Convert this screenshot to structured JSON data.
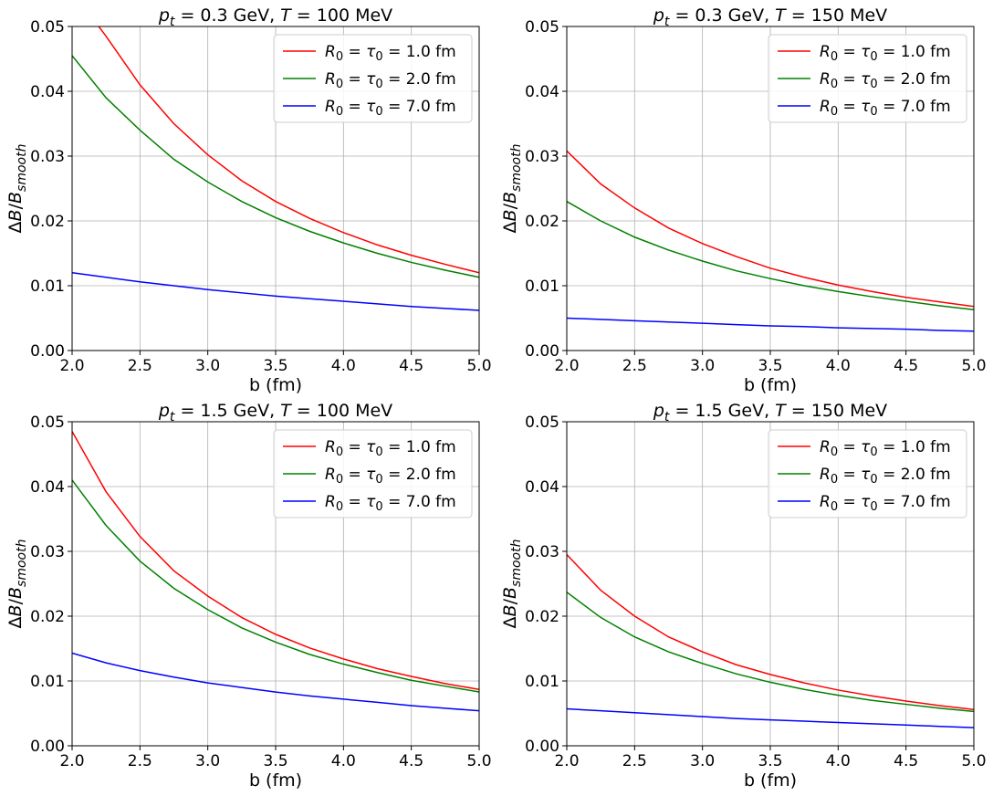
{
  "chart_data": [
    {
      "type": "line",
      "title": "p_t = 0.3 GeV, T = 100 MeV",
      "title_parts": {
        "var1": "p",
        "sub1": "t",
        "mid1": " = 0.3 GeV, ",
        "var2": "T",
        "mid2": " = 100 MeV"
      },
      "xlabel": "b (fm)",
      "ylabel": "ΔB/B_smooth",
      "xlim": [
        2.0,
        5.0
      ],
      "ylim": [
        0.0,
        0.05
      ],
      "xticks": [
        "2.0",
        "2.5",
        "3.0",
        "3.5",
        "4.0",
        "4.5",
        "5.0"
      ],
      "yticks": [
        "0.00",
        "0.01",
        "0.02",
        "0.03",
        "0.04",
        "0.05"
      ],
      "grid": true,
      "legend_position": "top-right",
      "x": [
        2.0,
        2.25,
        2.5,
        2.75,
        3.0,
        3.25,
        3.5,
        3.75,
        4.0,
        4.25,
        4.5,
        4.75,
        5.0
      ],
      "series": [
        {
          "name": "R_0 = τ_0 = 1.0 fm",
          "color": "#ff0000",
          "values": [
            0.0555,
            0.0485,
            0.041,
            0.035,
            0.0302,
            0.0262,
            0.023,
            0.0204,
            0.0182,
            0.0163,
            0.0147,
            0.0133,
            0.012
          ]
        },
        {
          "name": "R_0 = τ_0 = 2.0 fm",
          "color": "#008000",
          "values": [
            0.0455,
            0.039,
            0.034,
            0.0295,
            0.026,
            0.023,
            0.0205,
            0.0184,
            0.0166,
            0.015,
            0.0136,
            0.0124,
            0.0113
          ]
        },
        {
          "name": "R_0 = τ_0 = 7.0 fm",
          "color": "#0000ff",
          "values": [
            0.012,
            0.0113,
            0.0106,
            0.01,
            0.0094,
            0.0089,
            0.0084,
            0.008,
            0.0076,
            0.0072,
            0.0068,
            0.0065,
            0.0062
          ]
        }
      ]
    },
    {
      "type": "line",
      "title": "p_t = 0.3 GeV, T = 150 MeV",
      "title_parts": {
        "var1": "p",
        "sub1": "t",
        "mid1": " = 0.3 GeV, ",
        "var2": "T",
        "mid2": " = 150 MeV"
      },
      "xlabel": "b (fm)",
      "ylabel": "ΔB/B_smooth",
      "xlim": [
        2.0,
        5.0
      ],
      "ylim": [
        0.0,
        0.05
      ],
      "xticks": [
        "2.0",
        "2.5",
        "3.0",
        "3.5",
        "4.0",
        "4.5",
        "5.0"
      ],
      "yticks": [
        "0.00",
        "0.01",
        "0.02",
        "0.03",
        "0.04",
        "0.05"
      ],
      "grid": true,
      "legend_position": "top-right",
      "x": [
        2.0,
        2.25,
        2.5,
        2.75,
        3.0,
        3.25,
        3.5,
        3.75,
        4.0,
        4.25,
        4.5,
        4.75,
        5.0
      ],
      "series": [
        {
          "name": "R_0 = τ_0 = 1.0 fm",
          "color": "#ff0000",
          "values": [
            0.0308,
            0.0257,
            0.022,
            0.0189,
            0.0165,
            0.0145,
            0.0127,
            0.0113,
            0.0101,
            0.0091,
            0.0082,
            0.0075,
            0.0068
          ]
        },
        {
          "name": "R_0 = τ_0 = 2.0 fm",
          "color": "#008000",
          "values": [
            0.023,
            0.02,
            0.0175,
            0.0155,
            0.0138,
            0.0123,
            0.0111,
            0.01,
            0.0091,
            0.0083,
            0.0076,
            0.0069,
            0.0063
          ]
        },
        {
          "name": "R_0 = τ_0 = 7.0 fm",
          "color": "#0000ff",
          "values": [
            0.005,
            0.0048,
            0.0046,
            0.0044,
            0.0042,
            0.004,
            0.0038,
            0.0037,
            0.0035,
            0.0034,
            0.0033,
            0.0031,
            0.003
          ]
        }
      ]
    },
    {
      "type": "line",
      "title": "p_t = 1.5 GeV, T = 100 MeV",
      "title_parts": {
        "var1": "p",
        "sub1": "t",
        "mid1": " = 1.5 GeV, ",
        "var2": "T",
        "mid2": " = 100 MeV"
      },
      "xlabel": "b (fm)",
      "ylabel": "ΔB/B_smooth",
      "xlim": [
        2.0,
        5.0
      ],
      "ylim": [
        0.0,
        0.05
      ],
      "xticks": [
        "2.0",
        "2.5",
        "3.0",
        "3.5",
        "4.0",
        "4.5",
        "5.0"
      ],
      "yticks": [
        "0.00",
        "0.01",
        "0.02",
        "0.03",
        "0.04",
        "0.05"
      ],
      "grid": true,
      "legend_position": "top-right",
      "x": [
        2.0,
        2.25,
        2.5,
        2.75,
        3.0,
        3.25,
        3.5,
        3.75,
        4.0,
        4.25,
        4.5,
        4.75,
        5.0
      ],
      "series": [
        {
          "name": "R_0 = τ_0 = 1.0 fm",
          "color": "#ff0000",
          "values": [
            0.0485,
            0.0392,
            0.0323,
            0.027,
            0.0231,
            0.0198,
            0.0172,
            0.0151,
            0.0134,
            0.0119,
            0.0107,
            0.0096,
            0.0087
          ]
        },
        {
          "name": "R_0 = τ_0 = 2.0 fm",
          "color": "#008000",
          "values": [
            0.041,
            0.034,
            0.0285,
            0.0243,
            0.021,
            0.0182,
            0.016,
            0.0141,
            0.0126,
            0.0113,
            0.0101,
            0.0092,
            0.0083
          ]
        },
        {
          "name": "R_0 = τ_0 = 7.0 fm",
          "color": "#0000ff",
          "values": [
            0.0143,
            0.0128,
            0.0116,
            0.0106,
            0.0097,
            0.009,
            0.0083,
            0.0077,
            0.0072,
            0.0067,
            0.0062,
            0.0058,
            0.0054
          ]
        }
      ]
    },
    {
      "type": "line",
      "title": "p_t = 1.5 GeV, T = 150 MeV",
      "title_parts": {
        "var1": "p",
        "sub1": "t",
        "mid1": " = 1.5 GeV, ",
        "var2": "T",
        "mid2": " = 150 MeV"
      },
      "xlabel": "b (fm)",
      "ylabel": "ΔB/B_smooth",
      "xlim": [
        2.0,
        5.0
      ],
      "ylim": [
        0.0,
        0.05
      ],
      "xticks": [
        "2.0",
        "2.5",
        "3.0",
        "3.5",
        "4.0",
        "4.5",
        "5.0"
      ],
      "yticks": [
        "0.00",
        "0.01",
        "0.02",
        "0.03",
        "0.04",
        "0.05"
      ],
      "grid": true,
      "legend_position": "top-right",
      "x": [
        2.0,
        2.25,
        2.5,
        2.75,
        3.0,
        3.25,
        3.5,
        3.75,
        4.0,
        4.25,
        4.5,
        4.75,
        5.0
      ],
      "series": [
        {
          "name": "R_0 = τ_0 = 1.0 fm",
          "color": "#ff0000",
          "values": [
            0.0295,
            0.024,
            0.02,
            0.0168,
            0.0145,
            0.0125,
            0.011,
            0.0097,
            0.0086,
            0.0077,
            0.0069,
            0.0062,
            0.0056
          ]
        },
        {
          "name": "R_0 = τ_0 = 2.0 fm",
          "color": "#008000",
          "values": [
            0.0237,
            0.0198,
            0.0168,
            0.0145,
            0.0127,
            0.0111,
            0.0098,
            0.0087,
            0.0078,
            0.007,
            0.0064,
            0.0058,
            0.0053
          ]
        },
        {
          "name": "R_0 = τ_0 = 7.0 fm",
          "color": "#0000ff",
          "values": [
            0.0057,
            0.0054,
            0.0051,
            0.0048,
            0.0045,
            0.0042,
            0.004,
            0.0038,
            0.0036,
            0.0034,
            0.0032,
            0.003,
            0.0028
          ]
        }
      ]
    }
  ]
}
